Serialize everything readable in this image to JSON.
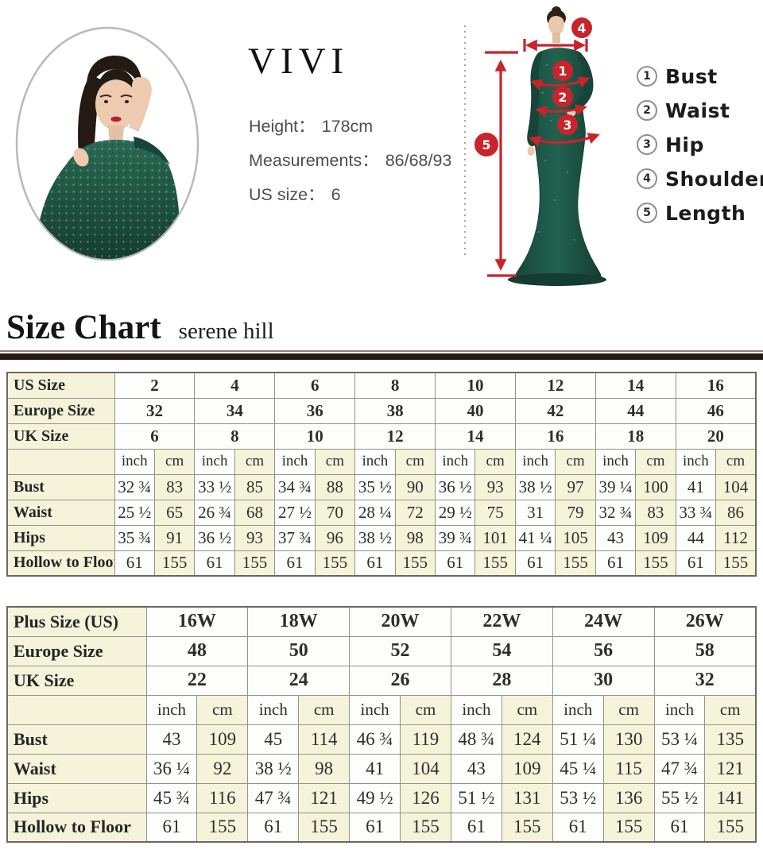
{
  "model_card": {
    "brand": "VIVI",
    "fields": [
      {
        "label": "Height：",
        "value": "178cm"
      },
      {
        "label": "Measurements：",
        "value": "86/68/93"
      },
      {
        "label": "US size：",
        "value": "6"
      }
    ]
  },
  "diagram": {
    "markers": [
      "1",
      "2",
      "3",
      "4",
      "5"
    ]
  },
  "legend": {
    "items": [
      {
        "num": "1",
        "label": "Bust"
      },
      {
        "num": "2",
        "label": "Waist"
      },
      {
        "num": "3",
        "label": "Hip"
      },
      {
        "num": "4",
        "label": "Shoulder"
      },
      {
        "num": "5",
        "label": "Length"
      }
    ]
  },
  "heading": {
    "title": "Size Chart",
    "subtitle": "serene hill"
  },
  "colors": {
    "accent_red": "#c9232b",
    "dress_green": "#1d4e3d",
    "cream_cell": "#f5f3da",
    "table_border": "#95928a",
    "rule_dark": "#29180f"
  },
  "tables": [
    {
      "id": "table-standard",
      "first_col_width": 135,
      "size_rows": [
        {
          "label": "US Size",
          "values": [
            "2",
            "4",
            "6",
            "8",
            "10",
            "12",
            "14",
            "16"
          ]
        },
        {
          "label": "Europe Size",
          "values": [
            "32",
            "34",
            "36",
            "38",
            "40",
            "42",
            "44",
            "46"
          ]
        },
        {
          "label": "UK Size",
          "values": [
            "6",
            "8",
            "10",
            "12",
            "14",
            "16",
            "18",
            "20"
          ]
        }
      ],
      "units": {
        "inch": "inch",
        "cm": "cm"
      },
      "measure_rows": [
        {
          "label": "Bust",
          "pairs": [
            [
              "32 ¾",
              "83"
            ],
            [
              "33 ½",
              "85"
            ],
            [
              "34 ¾",
              "88"
            ],
            [
              "35 ½",
              "90"
            ],
            [
              "36 ½",
              "93"
            ],
            [
              "38 ½",
              "97"
            ],
            [
              "39 ¼",
              "100"
            ],
            [
              "41",
              "104"
            ]
          ]
        },
        {
          "label": "Waist",
          "pairs": [
            [
              "25 ½",
              "65"
            ],
            [
              "26 ¾",
              "68"
            ],
            [
              "27 ½",
              "70"
            ],
            [
              "28 ¼",
              "72"
            ],
            [
              "29 ½",
              "75"
            ],
            [
              "31",
              "79"
            ],
            [
              "32 ¾",
              "83"
            ],
            [
              "33 ¾",
              "86"
            ]
          ]
        },
        {
          "label": "Hips",
          "pairs": [
            [
              "35 ¾",
              "91"
            ],
            [
              "36 ½",
              "93"
            ],
            [
              "37 ¾",
              "96"
            ],
            [
              "38 ½",
              "98"
            ],
            [
              "39 ¾",
              "101"
            ],
            [
              "41 ¼",
              "105"
            ],
            [
              "43",
              "109"
            ],
            [
              "44",
              "112"
            ]
          ]
        },
        {
          "label": "Hollow to Floor",
          "pairs": [
            [
              "61",
              "155"
            ],
            [
              "61",
              "155"
            ],
            [
              "61",
              "155"
            ],
            [
              "61",
              "155"
            ],
            [
              "61",
              "155"
            ],
            [
              "61",
              "155"
            ],
            [
              "61",
              "155"
            ],
            [
              "61",
              "155"
            ]
          ]
        }
      ]
    },
    {
      "id": "table-plus",
      "first_col_width": 175,
      "size_rows": [
        {
          "label": "Plus Size (US)",
          "values": [
            "16W",
            "18W",
            "20W",
            "22W",
            "24W",
            "26W"
          ]
        },
        {
          "label": "Europe Size",
          "values": [
            "48",
            "50",
            "52",
            "54",
            "56",
            "58"
          ]
        },
        {
          "label": "UK Size",
          "values": [
            "22",
            "24",
            "26",
            "28",
            "30",
            "32"
          ]
        }
      ],
      "units": {
        "inch": "inch",
        "cm": "cm"
      },
      "measure_rows": [
        {
          "label": "Bust",
          "pairs": [
            [
              "43",
              "109"
            ],
            [
              "45",
              "114"
            ],
            [
              "46 ¾",
              "119"
            ],
            [
              "48 ¾",
              "124"
            ],
            [
              "51 ¼",
              "130"
            ],
            [
              "53 ¼",
              "135"
            ]
          ]
        },
        {
          "label": "Waist",
          "pairs": [
            [
              "36 ¼",
              "92"
            ],
            [
              "38 ½",
              "98"
            ],
            [
              "41",
              "104"
            ],
            [
              "43",
              "109"
            ],
            [
              "45 ¼",
              "115"
            ],
            [
              "47 ¾",
              "121"
            ]
          ]
        },
        {
          "label": "Hips",
          "pairs": [
            [
              "45 ¾",
              "116"
            ],
            [
              "47 ¾",
              "121"
            ],
            [
              "49 ½",
              "126"
            ],
            [
              "51 ½",
              "131"
            ],
            [
              "53 ½",
              "136"
            ],
            [
              "55 ½",
              "141"
            ]
          ]
        },
        {
          "label": "Hollow to Floor",
          "pairs": [
            [
              "61",
              "155"
            ],
            [
              "61",
              "155"
            ],
            [
              "61",
              "155"
            ],
            [
              "61",
              "155"
            ],
            [
              "61",
              "155"
            ],
            [
              "61",
              "155"
            ]
          ]
        }
      ]
    }
  ]
}
